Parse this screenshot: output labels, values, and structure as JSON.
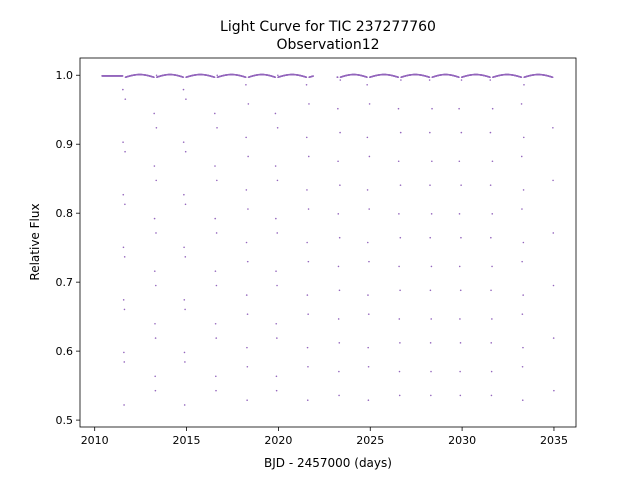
{
  "chart_data": {
    "type": "scatter",
    "title": "Light Curve for TIC 237277760",
    "subtitle": "Observation12",
    "xlabel": "BJD - 2457000 (days)",
    "ylabel": "Relative Flux",
    "xlim": [
      2009.2,
      2036.2
    ],
    "ylim": [
      0.49,
      1.025
    ],
    "x_ticks": [
      {
        "value": 2010,
        "label": "2010"
      },
      {
        "value": 2015,
        "label": "2015"
      },
      {
        "value": 2020,
        "label": "2020"
      },
      {
        "value": 2025,
        "label": "2025"
      },
      {
        "value": 2030,
        "label": "2030"
      },
      {
        "value": 2035,
        "label": "2035"
      }
    ],
    "y_ticks": [
      {
        "value": 0.5,
        "label": "0.5"
      },
      {
        "value": 0.6,
        "label": "0.6"
      },
      {
        "value": 0.7,
        "label": "0.7"
      },
      {
        "value": 0.8,
        "label": "0.8"
      },
      {
        "value": 0.9,
        "label": "0.9"
      },
      {
        "value": 1.0,
        "label": "1.0"
      }
    ],
    "grid": false,
    "marker_color": "#9467bd",
    "series": [
      {
        "x_range": [
          2010.4,
          2035.0
        ],
        "gap": [
          2021.9,
          2023.2
        ],
        "baseline_flux": 1.0,
        "eclipse_min_flux": 0.515,
        "eclipse_minima_x": [
          2011.6,
          2013.3,
          2014.9,
          2016.6,
          2018.3,
          2019.9,
          2021.6,
          2023.3,
          2024.9,
          2026.6,
          2028.3,
          2029.9,
          2031.6,
          2033.3,
          2035.0
        ]
      }
    ]
  }
}
